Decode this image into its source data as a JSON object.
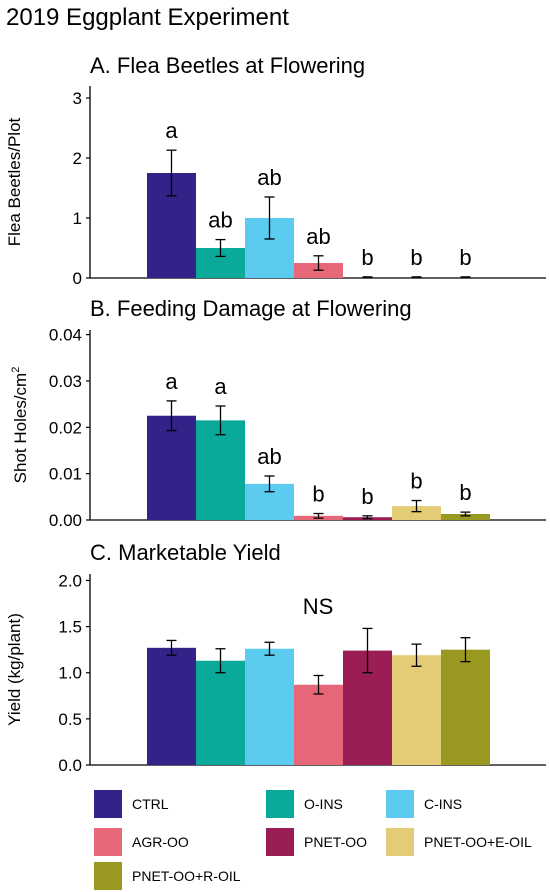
{
  "figure_title": "2019 Eggplant Experiment",
  "colors": {
    "CTRL": "#332288",
    "O-INS": "#0AA999",
    "C-INS": "#5BCBF0",
    "AGR-OO": "#E66878",
    "PNET-OO": "#9A1D55",
    "PNET-OO+E-OIL": "#E3CC75",
    "PNET-OO+R-OIL": "#999922"
  },
  "legend": [
    "CTRL",
    "O-INS",
    "C-INS",
    "AGR-OO",
    "PNET-OO",
    "PNET-OO+E-OIL",
    "PNET-OO+R-OIL"
  ],
  "chart_data": [
    {
      "type": "bar",
      "title": "A. Flea Beetles at Flowering",
      "ylabel": "Flea Beetles/Plot",
      "ylim": [
        0,
        3.2
      ],
      "yticks": [
        "0",
        "1",
        "2",
        "3"
      ],
      "ytick_values": [
        0,
        1,
        2,
        3
      ],
      "categories": [
        "CTRL",
        "O-INS",
        "C-INS",
        "AGR-OO",
        "PNET-OO",
        "PNET-OO+E-OIL",
        "PNET-OO+R-OIL"
      ],
      "values": [
        1.75,
        0.5,
        1.0,
        0.25,
        0,
        0,
        0
      ],
      "errors": [
        0.38,
        0.14,
        0.35,
        0.12,
        0,
        0,
        0
      ],
      "letters": [
        "a",
        "ab",
        "ab",
        "ab",
        "b",
        "b",
        "b"
      ],
      "annotation": ""
    },
    {
      "type": "bar",
      "title": "B. Feeding Damage at Flowering",
      "ylabel": "Shot Holes/cm",
      "ylabel_sup": "2",
      "ylim": [
        0,
        0.041
      ],
      "yticks": [
        "0.00",
        "0.01",
        "0.02",
        "0.03",
        "0.04"
      ],
      "ytick_values": [
        0,
        0.01,
        0.02,
        0.03,
        0.04
      ],
      "categories": [
        "CTRL",
        "O-INS",
        "C-INS",
        "AGR-OO",
        "PNET-OO",
        "PNET-OO+E-OIL",
        "PNET-OO+R-OIL"
      ],
      "values": [
        0.0225,
        0.0215,
        0.0078,
        0.0009,
        0.0006,
        0.003,
        0.0013
      ],
      "errors": [
        0.0032,
        0.0031,
        0.0017,
        0.0005,
        0.0003,
        0.0012,
        0.0004
      ],
      "letters": [
        "a",
        "a",
        "ab",
        "b",
        "b",
        "b",
        "b"
      ],
      "annotation": ""
    },
    {
      "type": "bar",
      "title": "C. Marketable Yield",
      "ylabel": "Yield (kg/plant)",
      "ylim": [
        0,
        2.07
      ],
      "yticks": [
        "0.0",
        "0.5",
        "1.0",
        "1.5",
        "2.0"
      ],
      "ytick_values": [
        0,
        0.5,
        1.0,
        1.5,
        2.0
      ],
      "categories": [
        "CTRL",
        "O-INS",
        "C-INS",
        "AGR-OO",
        "PNET-OO",
        "PNET-OO+E-OIL",
        "PNET-OO+R-OIL"
      ],
      "values": [
        1.27,
        1.13,
        1.26,
        0.87,
        1.24,
        1.19,
        1.25
      ],
      "errors": [
        0.08,
        0.13,
        0.07,
        0.1,
        0.24,
        0.12,
        0.13
      ],
      "letters": [
        "",
        "",
        "",
        "",
        "",
        "",
        ""
      ],
      "annotation": "NS"
    }
  ]
}
